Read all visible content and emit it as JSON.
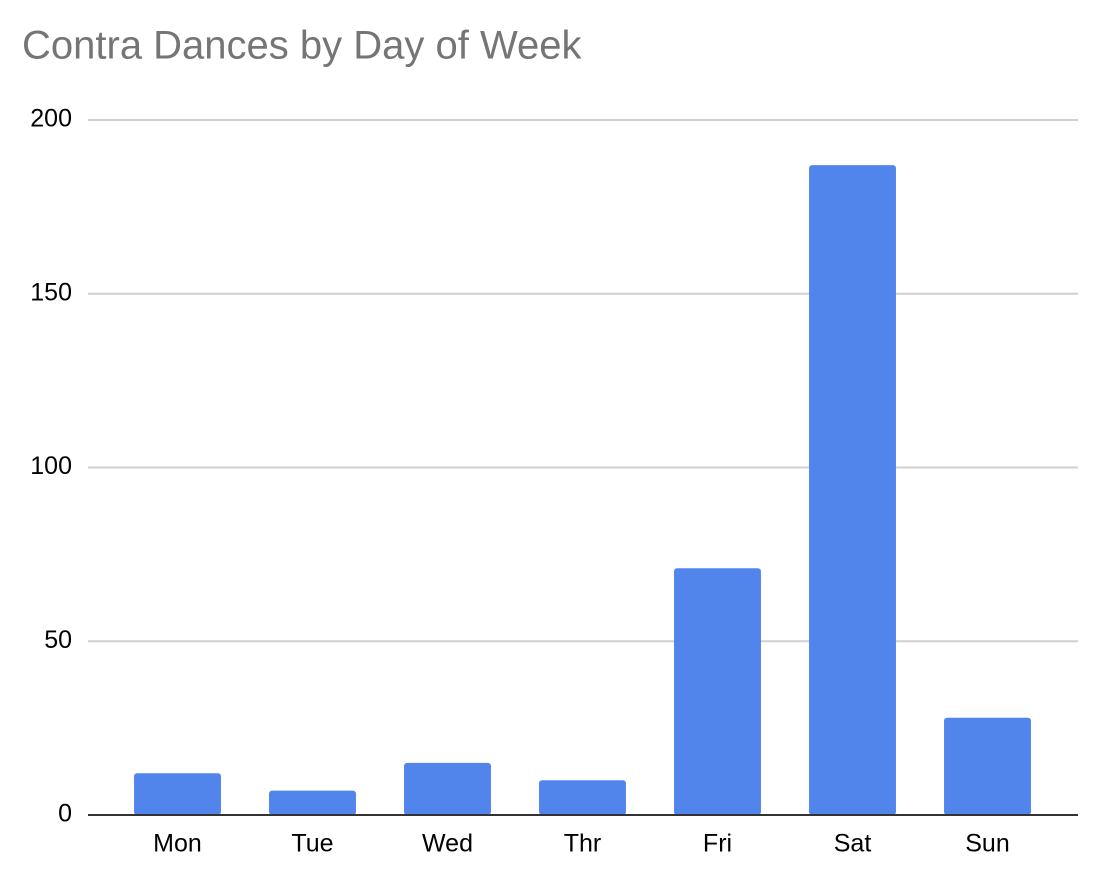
{
  "chart_data": {
    "type": "bar",
    "title": "Contra Dances by Day of Week",
    "categories": [
      "Mon",
      "Tue",
      "Wed",
      "Thr",
      "Fri",
      "Sat",
      "Sun"
    ],
    "values": [
      12,
      7,
      15,
      10,
      71,
      187,
      28
    ],
    "color": "#5285ec",
    "ylim": [
      0,
      200
    ],
    "yticks": [
      0,
      50,
      100,
      150,
      200
    ],
    "grid": true
  }
}
